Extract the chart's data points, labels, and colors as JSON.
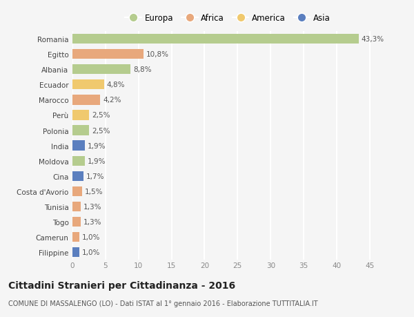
{
  "categories": [
    "Romania",
    "Egitto",
    "Albania",
    "Ecuador",
    "Marocco",
    "Perù",
    "Polonia",
    "India",
    "Moldova",
    "Cina",
    "Costa d'Avorio",
    "Tunisia",
    "Togo",
    "Camerun",
    "Filippine"
  ],
  "values": [
    43.3,
    10.8,
    8.8,
    4.8,
    4.2,
    2.5,
    2.5,
    1.9,
    1.9,
    1.7,
    1.5,
    1.3,
    1.3,
    1.0,
    1.0
  ],
  "labels": [
    "43,3%",
    "10,8%",
    "8,8%",
    "4,8%",
    "4,2%",
    "2,5%",
    "2,5%",
    "1,9%",
    "1,9%",
    "1,7%",
    "1,5%",
    "1,3%",
    "1,3%",
    "1,0%",
    "1,0%"
  ],
  "colors": [
    "#b5cc8e",
    "#e8a87c",
    "#b5cc8e",
    "#f0c96e",
    "#e8a87c",
    "#f0c96e",
    "#b5cc8e",
    "#5b7fbf",
    "#b5cc8e",
    "#5b7fbf",
    "#e8a87c",
    "#e8a87c",
    "#e8a87c",
    "#e8a87c",
    "#5b7fbf"
  ],
  "legend": [
    {
      "label": "Europa",
      "color": "#b5cc8e"
    },
    {
      "label": "Africa",
      "color": "#e8a87c"
    },
    {
      "label": "America",
      "color": "#f0c96e"
    },
    {
      "label": "Asia",
      "color": "#5b7fbf"
    }
  ],
  "xlim": [
    0,
    47
  ],
  "xticks": [
    0,
    5,
    10,
    15,
    20,
    25,
    30,
    35,
    40,
    45
  ],
  "title": "Cittadini Stranieri per Cittadinanza - 2016",
  "subtitle": "COMUNE DI MASSALENGO (LO) - Dati ISTAT al 1° gennaio 2016 - Elaborazione TUTTITALIA.IT",
  "background_color": "#f5f5f5",
  "grid_color": "#ffffff",
  "bar_height": 0.65,
  "label_fontsize": 7.5,
  "tick_fontsize": 7.5,
  "title_fontsize": 10,
  "subtitle_fontsize": 7
}
